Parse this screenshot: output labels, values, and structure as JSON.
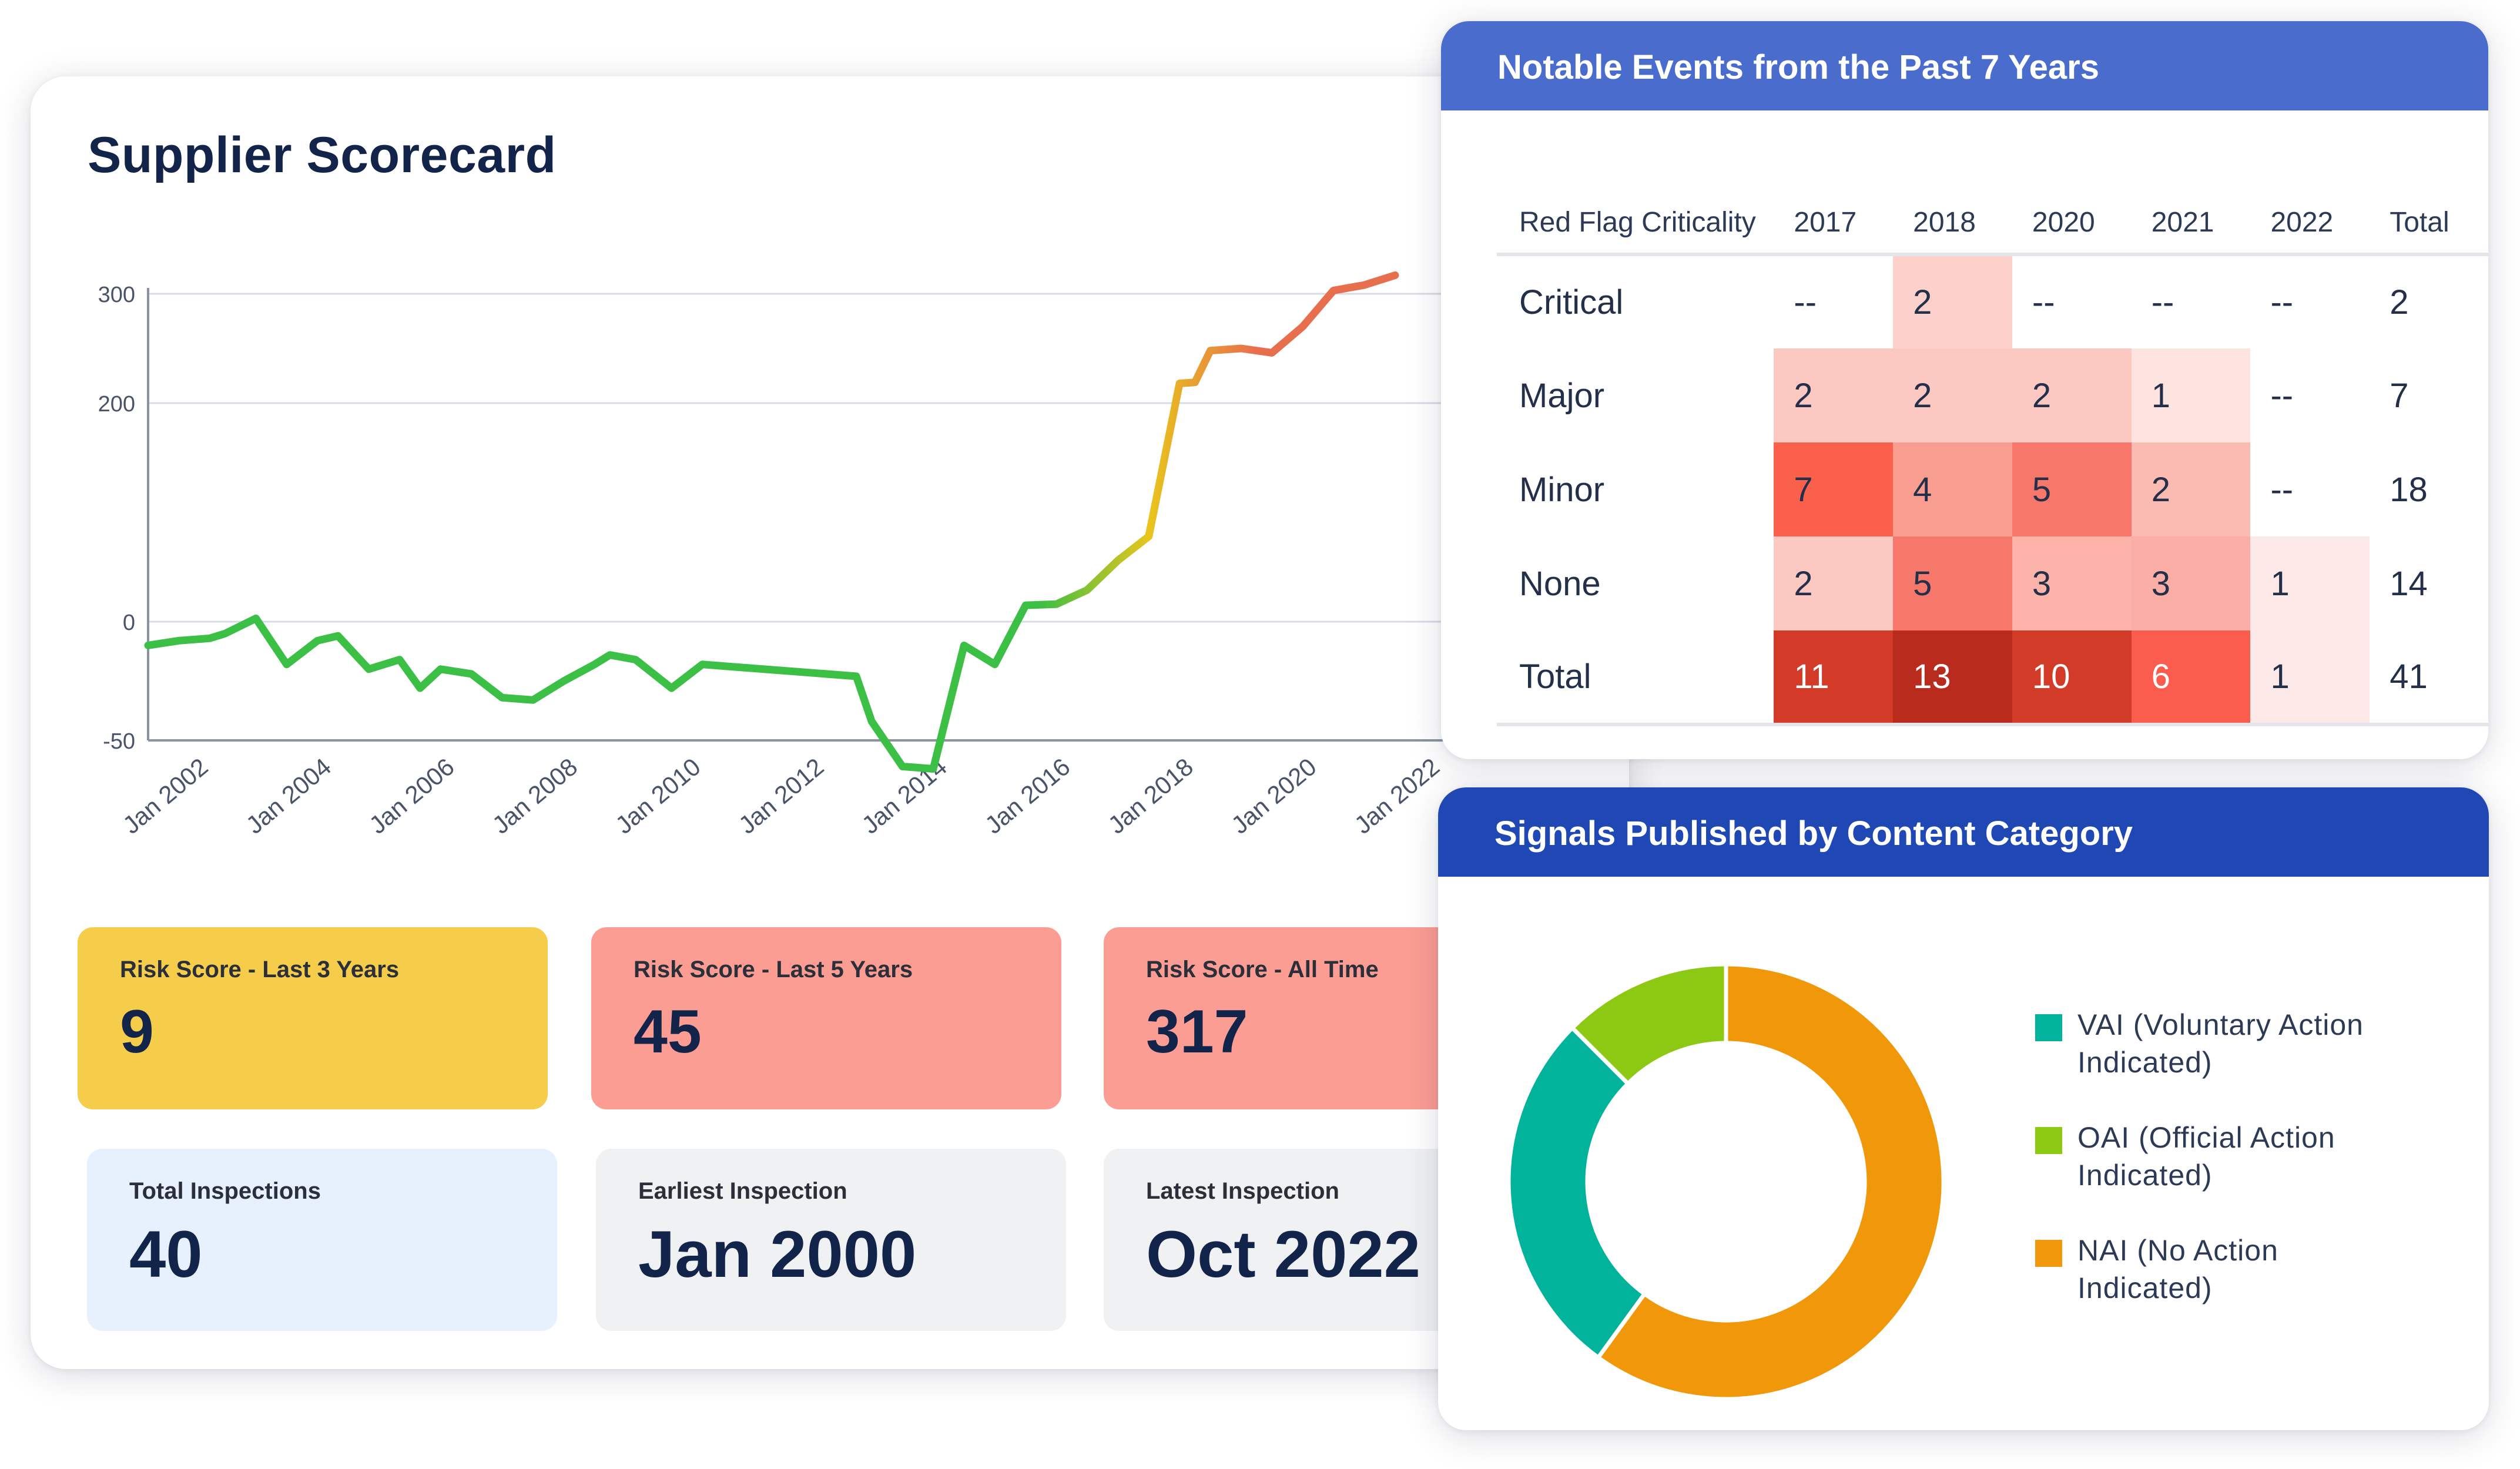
{
  "scorecard": {
    "title": "Supplier Scorecard",
    "chart_data": {
      "type": "line",
      "x": [
        "2001-01",
        "2001-07",
        "2002-01",
        "2002-04",
        "2002-10",
        "2003-04",
        "2003-10",
        "2004-02",
        "2004-08",
        "2005-02",
        "2005-06",
        "2005-10",
        "2006-04",
        "2006-10",
        "2007-04",
        "2007-10",
        "2008-04",
        "2008-07",
        "2008-12",
        "2009-07",
        "2010-01",
        "2010-07",
        "2011-01",
        "2011-07",
        "2012-01",
        "2012-07",
        "2012-10",
        "2013-04",
        "2013-10",
        "2014-04",
        "2014-10",
        "2015-04",
        "2015-10",
        "2016-04",
        "2016-10",
        "2017-04",
        "2017-07",
        "2017-10",
        "2018-01",
        "2018-04",
        "2018-10",
        "2019-04",
        "2019-10",
        "2020-04",
        "2020-10",
        "2021-04"
      ],
      "y": [
        -10,
        -8,
        -7,
        -5,
        3,
        -18,
        -8,
        -6,
        -20,
        -16,
        -28,
        -20,
        -22,
        -32,
        -33,
        -25,
        -18,
        -14,
        -16,
        -28,
        -18,
        -19,
        -20,
        -21,
        -22,
        -23,
        -42,
        -61,
        -62,
        -10,
        -18,
        15,
        16,
        29,
        56,
        78,
        148,
        218,
        219,
        248,
        250,
        246,
        270,
        303,
        308,
        317
      ],
      "ylim": [
        -50,
        320
      ],
      "yticks": [
        300,
        200,
        0,
        -50
      ],
      "xtick_labels": [
        "Jan 2002",
        "Jan 2004",
        "Jan 2006",
        "Jan 2008",
        "Jan 2010",
        "Jan 2012",
        "Jan 2014",
        "Jan 2016",
        "Jan 2018",
        "Jan 2020",
        "Jan 2022"
      ],
      "grid": true,
      "color_scale": [
        "#3cbf45",
        "#e8c51c",
        "#e86f4e"
      ]
    },
    "tiles": [
      {
        "label": "Risk Score - Last 3 Years",
        "value": "9",
        "bg": "#f5cd4b"
      },
      {
        "label": "Risk Score - Last 5 Years",
        "value": "45",
        "bg": "#fb9d93"
      },
      {
        "label": "Risk Score - All Time",
        "value": "317",
        "bg": "#fb9d93"
      },
      {
        "label": "Total Inspections",
        "value": "40",
        "bg": "#e7f1fd"
      },
      {
        "label": "Earliest Inspection",
        "value": "Jan 2000",
        "bg": "#f0f1f3"
      },
      {
        "label": "Latest Inspection",
        "value": "Oct 2022",
        "bg": "#f0f1f3"
      }
    ]
  },
  "events": {
    "title": "Notable Events from the Past 7 Years",
    "columns": [
      "Red Flag Criticality",
      "2017",
      "2018",
      "2020",
      "2021",
      "2022",
      "Total"
    ],
    "rows": [
      {
        "label": "Critical",
        "cells": [
          "--",
          "2",
          "--",
          "--",
          "--"
        ],
        "total": "2"
      },
      {
        "label": "Major",
        "cells": [
          "2",
          "2",
          "2",
          "1",
          "--"
        ],
        "total": "7"
      },
      {
        "label": "Minor",
        "cells": [
          "7",
          "4",
          "5",
          "2",
          "--"
        ],
        "total": "18"
      },
      {
        "label": "None",
        "cells": [
          "2",
          "5",
          "3",
          "3",
          "1"
        ],
        "total": "14"
      },
      {
        "label": "Total",
        "cells": [
          "11",
          "13",
          "10",
          "6",
          "1"
        ],
        "total": "41"
      }
    ],
    "heat_colors": {
      "Critical": [
        null,
        "#fdd1cb",
        null,
        null,
        null
      ],
      "Major": [
        "#fcc8c2",
        "#fcc8c2",
        "#fcc8c2",
        "#fde4e1",
        null
      ],
      "Minor": [
        "#fa604b",
        "#fa9d91",
        "#f7776a",
        "#fbbab2",
        null
      ],
      "None": [
        "#fcc8c2",
        "#f6786a",
        "#fcb3aa",
        "#fbaea5",
        "#fde9e7"
      ],
      "Total": [
        "#d33b28",
        "#b82b1d",
        "#d23b27",
        "#fa5d4e",
        "#fde9e7"
      ]
    }
  },
  "signals": {
    "title": "Signals Published by Content Category",
    "chart_data": {
      "type": "pie",
      "donut": true,
      "labels": [
        "NAI (No Action Indicated)",
        "VAI (Voluntary Action Indicated)",
        "OAI (Official Action Indicated)"
      ],
      "values": [
        60,
        27.5,
        12.5
      ],
      "colors": [
        "#f0980a",
        "#00b39a",
        "#8dc813"
      ]
    },
    "legend": [
      {
        "line1": "VAI (Voluntary Action",
        "line2": "Indicated)",
        "color": "#00b39a"
      },
      {
        "line1": "OAI (Official Action",
        "line2": "Indicated)",
        "color": "#8dc813"
      },
      {
        "line1": "NAI (No Action",
        "line2": "Indicated)",
        "color": "#f0980a"
      }
    ]
  }
}
